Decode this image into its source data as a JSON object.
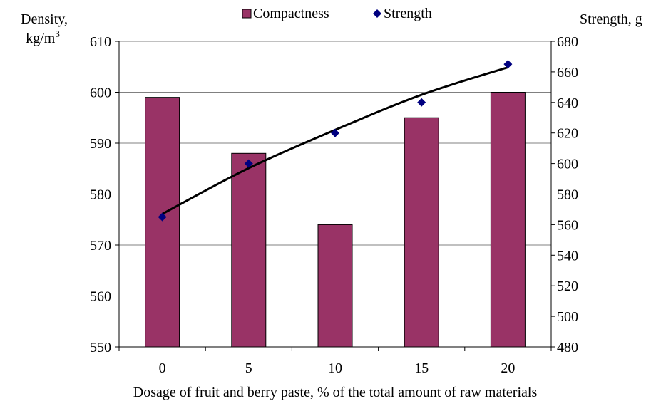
{
  "chart_data": {
    "type": "bar",
    "categories": [
      "0",
      "5",
      "10",
      "15",
      "20"
    ],
    "xlabel": "Dosage of fruit and berry paste, % of the total amount of raw materials",
    "ylabel_left": {
      "line1": "Density,",
      "line2": "kg/m",
      "sup": "3"
    },
    "ylabel_right": "Strength, g",
    "ylim_left": [
      550,
      610
    ],
    "ylim_right": [
      480,
      680
    ],
    "yticks_left": [
      550,
      560,
      570,
      580,
      590,
      600,
      610
    ],
    "yticks_right": [
      480,
      500,
      520,
      540,
      560,
      580,
      600,
      620,
      640,
      660,
      680
    ],
    "legend_position": "top-center",
    "grid": "horizontal",
    "series": [
      {
        "name": "Compactness",
        "type": "bar",
        "axis": "left",
        "color": "#993366",
        "values": [
          599,
          588,
          574,
          595,
          600
        ]
      },
      {
        "name": "Strength",
        "type": "scatter",
        "axis": "right",
        "color": "#000080",
        "marker": "diamond",
        "values": [
          565,
          600,
          620,
          640,
          665
        ]
      }
    ],
    "trendline": {
      "color": "#000000",
      "values": [
        567,
        597,
        622,
        645,
        663
      ]
    }
  }
}
